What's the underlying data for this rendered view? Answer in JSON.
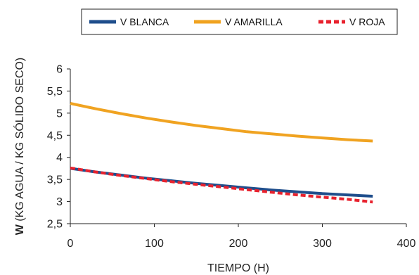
{
  "chart_data": {
    "type": "line",
    "xlabel": "TIEMPO (H)",
    "ylabel_bold": "W",
    "ylabel_rest": " (KG AGUA / KG SÓLIDO SECO)",
    "xlim": [
      0,
      400
    ],
    "ylim": [
      2.5,
      6
    ],
    "x_ticks": [
      0,
      100,
      200,
      300,
      400
    ],
    "y_ticks": [
      2.5,
      3,
      3.5,
      4,
      4.5,
      5,
      5.5,
      6
    ],
    "x_tick_labels": [
      "0",
      "100",
      "200",
      "300",
      "400"
    ],
    "y_tick_labels": [
      "2,5",
      "3",
      "3,5",
      "4",
      "4,5",
      "5",
      "5,5",
      "6"
    ],
    "grid": false,
    "legend_position": "top",
    "series": [
      {
        "name": "V BLANCA",
        "color": "#1f4e8c",
        "style": "solid",
        "x": [
          0,
          30,
          60,
          90,
          120,
          150,
          180,
          210,
          240,
          270,
          300,
          330,
          360
        ],
        "y": [
          3.75,
          3.67,
          3.6,
          3.53,
          3.47,
          3.41,
          3.36,
          3.31,
          3.26,
          3.22,
          3.18,
          3.15,
          3.12
        ]
      },
      {
        "name": "V AMARILLA",
        "color": "#f0a321",
        "style": "solid",
        "x": [
          0,
          30,
          60,
          90,
          120,
          150,
          180,
          210,
          240,
          270,
          300,
          330,
          360
        ],
        "y": [
          5.22,
          5.1,
          4.99,
          4.89,
          4.8,
          4.72,
          4.65,
          4.58,
          4.53,
          4.48,
          4.44,
          4.4,
          4.37
        ]
      },
      {
        "name": "V ROJA",
        "color": "#e8222e",
        "style": "dashed",
        "x": [
          0,
          30,
          60,
          90,
          120,
          150,
          180,
          210,
          240,
          270,
          300,
          330,
          360
        ],
        "y": [
          3.76,
          3.67,
          3.59,
          3.52,
          3.45,
          3.39,
          3.33,
          3.27,
          3.21,
          3.15,
          3.1,
          3.05,
          2.99
        ]
      }
    ]
  }
}
